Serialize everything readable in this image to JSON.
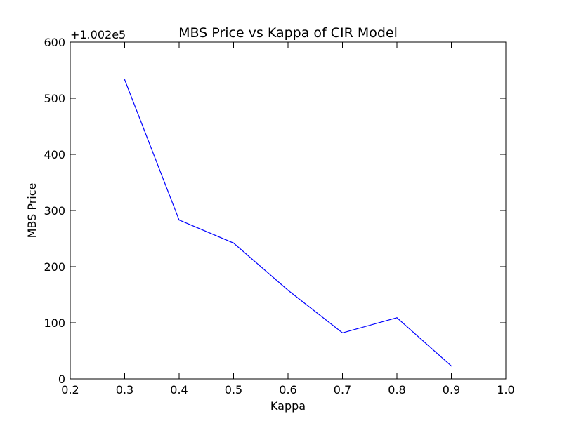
{
  "chart_data": {
    "type": "line",
    "title": "MBS Price vs Kappa of CIR Model",
    "xlabel": "Kappa",
    "ylabel": "MBS Price",
    "offset_label": "+1.002e5",
    "xlim": [
      0.2,
      1.0
    ],
    "ylim": [
      0,
      600
    ],
    "xticks": [
      "0.2",
      "0.3",
      "0.4",
      "0.5",
      "0.6",
      "0.7",
      "0.8",
      "0.9",
      "1.0"
    ],
    "yticks": [
      "0",
      "100",
      "200",
      "300",
      "400",
      "500",
      "600"
    ],
    "grid": false,
    "series": [
      {
        "color": "#0000ff",
        "x": [
          0.3,
          0.4,
          0.5,
          0.6,
          0.7,
          0.8,
          0.9
        ],
        "y": [
          533,
          283,
          242,
          158,
          82,
          109,
          23
        ]
      }
    ]
  }
}
